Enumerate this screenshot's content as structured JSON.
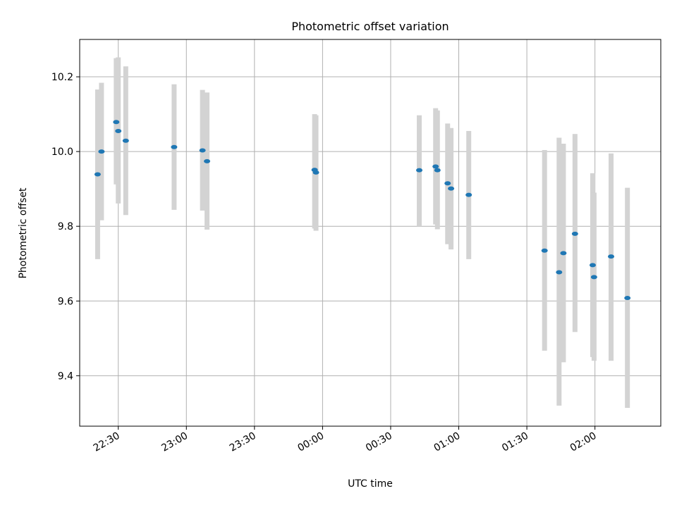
{
  "chart_data": {
    "type": "scatter",
    "title": "Photometric offset variation",
    "xlabel": "UTC time",
    "ylabel": "Photometric offset",
    "xlim": [
      "22:13",
      "02:29"
    ],
    "ylim": [
      9.265,
      10.3
    ],
    "x_ticks": [
      "22:30",
      "23:00",
      "23:30",
      "00:00",
      "00:30",
      "01:00",
      "01:30",
      "02:00"
    ],
    "y_ticks": [
      "9.4",
      "9.6",
      "9.8",
      "10.0",
      "10.2"
    ],
    "grid": true,
    "marker_color": "#1f77b4",
    "errorbar_color": "#d3d3d3",
    "points": [
      {
        "time": "22:20.9",
        "value": 9.939,
        "low": 9.712,
        "high": 10.166
      },
      {
        "time": "22:22.6",
        "value": 10.0,
        "low": 9.816,
        "high": 10.184
      },
      {
        "time": "22:29.1",
        "value": 10.079,
        "low": 9.912,
        "high": 10.25
      },
      {
        "time": "22:30.0",
        "value": 10.055,
        "low": 9.861,
        "high": 10.252
      },
      {
        "time": "22:33.3",
        "value": 10.029,
        "low": 9.83,
        "high": 10.228
      },
      {
        "time": "22:54.6",
        "value": 10.012,
        "low": 9.844,
        "high": 10.18
      },
      {
        "time": "23:07.1",
        "value": 10.003,
        "low": 9.842,
        "high": 10.165
      },
      {
        "time": "23:09.1",
        "value": 9.974,
        "low": 9.791,
        "high": 10.158
      },
      {
        "time": "23:56.5",
        "value": 9.951,
        "low": 9.794,
        "high": 10.1
      },
      {
        "time": "23:57.1",
        "value": 9.944,
        "low": 9.788,
        "high": 10.097
      },
      {
        "time": "00:42.6",
        "value": 9.95,
        "low": 9.8,
        "high": 10.097
      },
      {
        "time": "00:49.8",
        "value": 9.96,
        "low": 9.805,
        "high": 10.116
      },
      {
        "time": "00:50.6",
        "value": 9.95,
        "low": 9.792,
        "high": 10.11
      },
      {
        "time": "00:55.1",
        "value": 9.915,
        "low": 9.752,
        "high": 10.075
      },
      {
        "time": "00:56.6",
        "value": 9.901,
        "low": 9.738,
        "high": 10.063
      },
      {
        "time": "01:04.4",
        "value": 9.884,
        "low": 9.712,
        "high": 10.055
      },
      {
        "time": "01:37.8",
        "value": 9.735,
        "low": 9.467,
        "high": 10.004
      },
      {
        "time": "01:44.2",
        "value": 9.677,
        "low": 9.32,
        "high": 10.037
      },
      {
        "time": "01:46.1",
        "value": 9.728,
        "low": 9.436,
        "high": 10.021
      },
      {
        "time": "01:51.2",
        "value": 9.78,
        "low": 9.517,
        "high": 10.047
      },
      {
        "time": "01:59.0",
        "value": 9.696,
        "low": 9.45,
        "high": 9.942
      },
      {
        "time": "01:59.6",
        "value": 9.664,
        "low": 9.44,
        "high": 9.89
      },
      {
        "time": "02:07.1",
        "value": 9.719,
        "low": 9.44,
        "high": 9.995
      },
      {
        "time": "02:14.3",
        "value": 9.608,
        "low": 9.314,
        "high": 9.903
      }
    ]
  }
}
